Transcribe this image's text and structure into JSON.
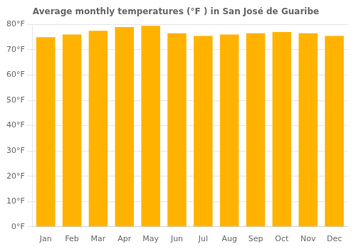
{
  "chart_data": {
    "type": "bar",
    "title": "Average monthly temperatures (°F ) in San José de Guaribe",
    "categories": [
      "Jan",
      "Feb",
      "Mar",
      "Apr",
      "May",
      "Jun",
      "Jul",
      "Aug",
      "Sep",
      "Oct",
      "Nov",
      "Dec"
    ],
    "values": [
      75,
      76,
      77.5,
      79,
      79.5,
      76.5,
      75.5,
      76,
      76.5,
      77,
      76.5,
      75.5
    ],
    "color": "#FFB300",
    "ylim": [
      0,
      80
    ],
    "yticks": [
      {
        "value": 0,
        "label": "0°F"
      },
      {
        "value": 10,
        "label": "10°F"
      },
      {
        "value": 20,
        "label": "20°F"
      },
      {
        "value": 30,
        "label": "30°F"
      },
      {
        "value": 40,
        "label": "40°F"
      },
      {
        "value": 50,
        "label": "50°F"
      },
      {
        "value": 60,
        "label": "60°F"
      },
      {
        "value": 70,
        "label": "70°F"
      },
      {
        "value": 80,
        "label": "80°F"
      }
    ],
    "grid": true
  }
}
